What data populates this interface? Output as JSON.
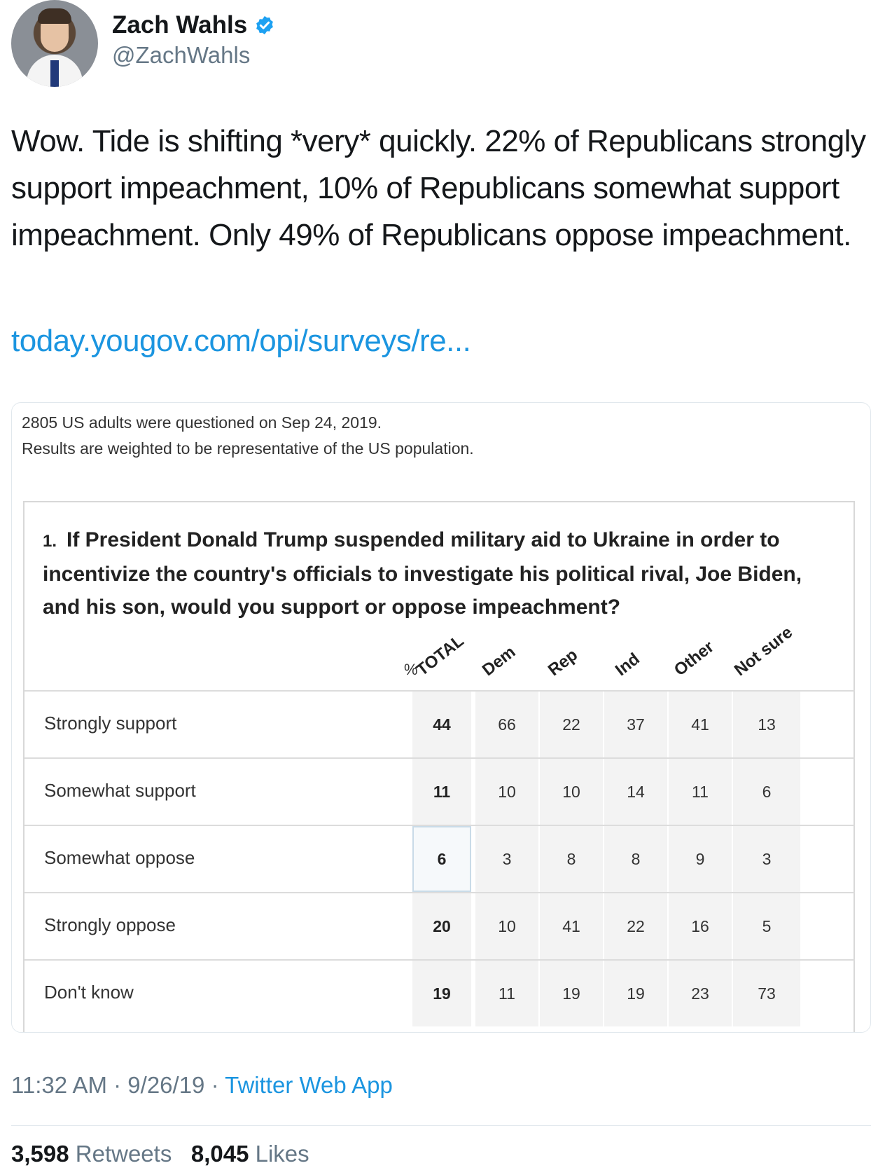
{
  "user": {
    "name": "Zach Wahls",
    "handle": "@ZachWahls"
  },
  "tweet": {
    "text": "Wow. Tide is shifting *very* quickly. 22% of Republicans strongly support impeachment, 10% of Republicans somewhat support impeachment. Only 49% of Republicans oppose impeachment.",
    "link": "today.yougov.com/opi/surveys/re..."
  },
  "card": {
    "meta_line1": "2805 US adults were questioned on Sep 24, 2019.",
    "meta_line2": "Results are weighted to be representative of the US population.",
    "question_number": "1.",
    "question": "If President Donald Trump suspended military aid to Ukraine in order to incentivize the country's officials to investigate his political rival, Joe Biden, and his son, would you support or oppose impeachment?",
    "pct_label": "%",
    "columns": [
      "TOTAL",
      "Dem",
      "Rep",
      "Ind",
      "Other",
      "Not sure"
    ],
    "rows": [
      {
        "label": "Strongly support",
        "values": [
          "44",
          "66",
          "22",
          "37",
          "41",
          "13"
        ]
      },
      {
        "label": "Somewhat support",
        "values": [
          "11",
          "10",
          "10",
          "14",
          "11",
          "6"
        ]
      },
      {
        "label": "Somewhat oppose",
        "values": [
          "6",
          "3",
          "8",
          "8",
          "9",
          "3"
        ]
      },
      {
        "label": "Strongly oppose",
        "values": [
          "20",
          "10",
          "41",
          "22",
          "16",
          "5"
        ]
      },
      {
        "label": "Don't know",
        "values": [
          "19",
          "11",
          "19",
          "19",
          "23",
          "73"
        ]
      }
    ]
  },
  "footer": {
    "time": "11:32 AM · 9/26/19 · ",
    "source": "Twitter Web App",
    "retweets_count": "3,598",
    "retweets_label": "Retweets",
    "likes_count": "8,045",
    "likes_label": "Likes"
  },
  "colors": {
    "link": "#1b95e0",
    "verified": "#1da1f2",
    "secondary_text": "#657786"
  }
}
